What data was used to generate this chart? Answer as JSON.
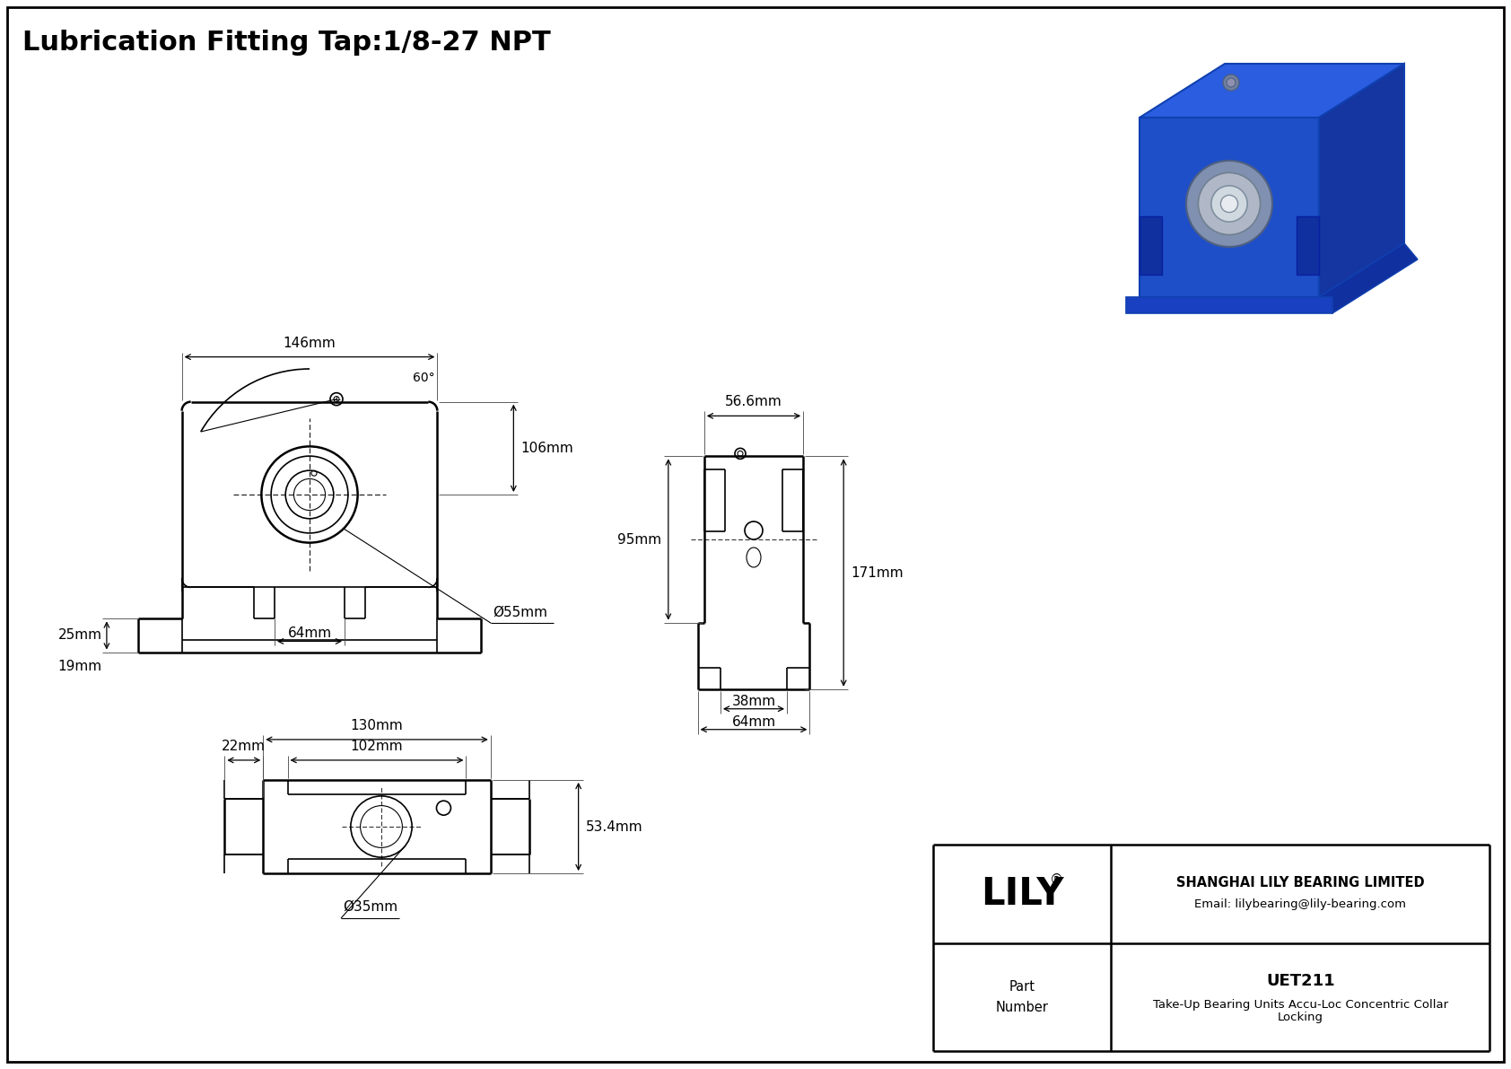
{
  "title": "Lubrication Fitting Tap:1/8-27 NPT",
  "bg_color": "#ffffff",
  "line_color": "#000000",
  "part_number": "UET211",
  "part_desc1": "Take-Up Bearing Units Accu-Loc Concentric Collar",
  "part_desc2": "Locking",
  "company": "SHANGHAI LILY BEARING LIMITED",
  "email": "Email: lilybearing@lily-bearing.com",
  "logo": "LILY",
  "dim_146": "146mm",
  "dim_60": "60°",
  "dim_106": "106mm",
  "dim_25": "25mm",
  "dim_19": "19mm",
  "dim_64": "64mm",
  "dim_55": "Ø55mm",
  "dim_130": "130mm",
  "dim_102": "102mm",
  "dim_534": "53.4mm",
  "dim_22": "22mm",
  "dim_35": "Ø35mm",
  "dim_566": "56.6mm",
  "dim_95": "95mm",
  "dim_171": "171mm",
  "dim_38": "38mm",
  "dim_64b": "64mm"
}
